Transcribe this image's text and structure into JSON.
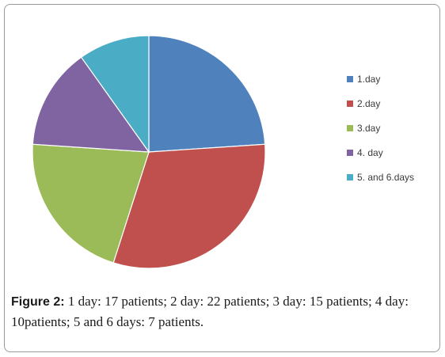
{
  "chart_data": {
    "type": "pie",
    "title": "",
    "categories": [
      "1.day",
      "2.day",
      "3.day",
      "4. day",
      "5. and 6.days"
    ],
    "values": [
      17,
      22,
      15,
      10,
      7
    ],
    "colors": [
      "#4f81bd",
      "#c0504d",
      "#9bbb59",
      "#8064a2",
      "#4bacc6"
    ],
    "start": "12 o'clock",
    "direction": "clockwise",
    "legend_position": "right"
  },
  "caption": {
    "label": "Figure 2:",
    "text": " 1 day: 17 patients; 2 day: 22 patients; 3 day: 15 patients; 4 day: 10patients; 5 and 6 days: 7 patients."
  }
}
